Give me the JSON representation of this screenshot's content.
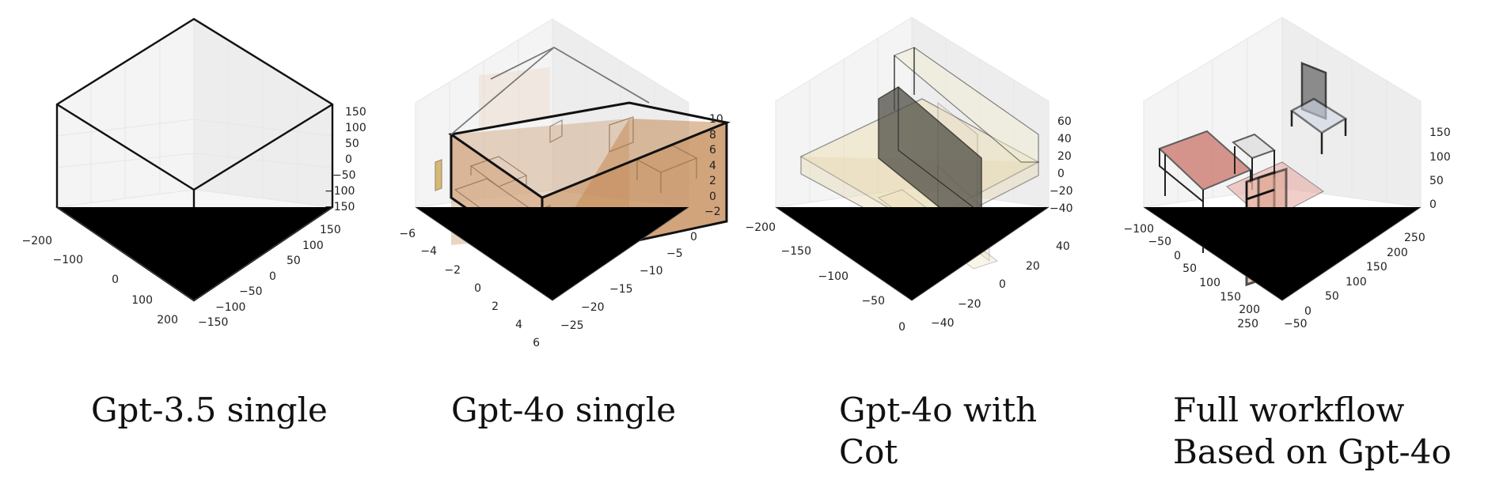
{
  "panels": [
    {
      "id": "gpt35",
      "caption": [
        "Gpt-3.5 single"
      ],
      "x_ticks": [
        "−200",
        "−100",
        "0",
        "100",
        "200"
      ],
      "y_ticks": [
        "150",
        "100",
        "50",
        "0",
        "−50",
        "−100",
        "−150"
      ],
      "z_ticks": [
        "150",
        "100",
        "50",
        "0",
        "−50",
        "−100",
        "−150"
      ]
    },
    {
      "id": "gpt4o",
      "caption": [
        "Gpt-4o single"
      ],
      "x_ticks": [
        "−6",
        "−4",
        "−2",
        "0",
        "2",
        "4",
        "6"
      ],
      "y_ticks": [
        "0",
        "−5",
        "−10",
        "−15",
        "−20",
        "−25"
      ],
      "z_ticks": [
        "10",
        "8",
        "6",
        "4",
        "2",
        "0",
        "−2"
      ]
    },
    {
      "id": "gpt4o-cot",
      "caption": [
        "Gpt-4o with",
        "Cot"
      ],
      "x_ticks": [
        "−200",
        "−150",
        "−100",
        "−50",
        "0"
      ],
      "y_ticks": [
        "40",
        "20",
        "0",
        "−20",
        "−40"
      ],
      "z_ticks": [
        "60",
        "40",
        "20",
        "0",
        "−20",
        "−40"
      ]
    },
    {
      "id": "full-workflow",
      "caption": [
        "Full workflow",
        "Based on Gpt-4o"
      ],
      "x_ticks": [
        "−100",
        "−50",
        "0",
        "50",
        "100",
        "150",
        "200",
        "250"
      ],
      "y_ticks": [
        "250",
        "200",
        "150",
        "100",
        "50",
        "0",
        "−50"
      ],
      "z_ticks": [
        "150",
        "100",
        "50",
        "0"
      ]
    }
  ]
}
